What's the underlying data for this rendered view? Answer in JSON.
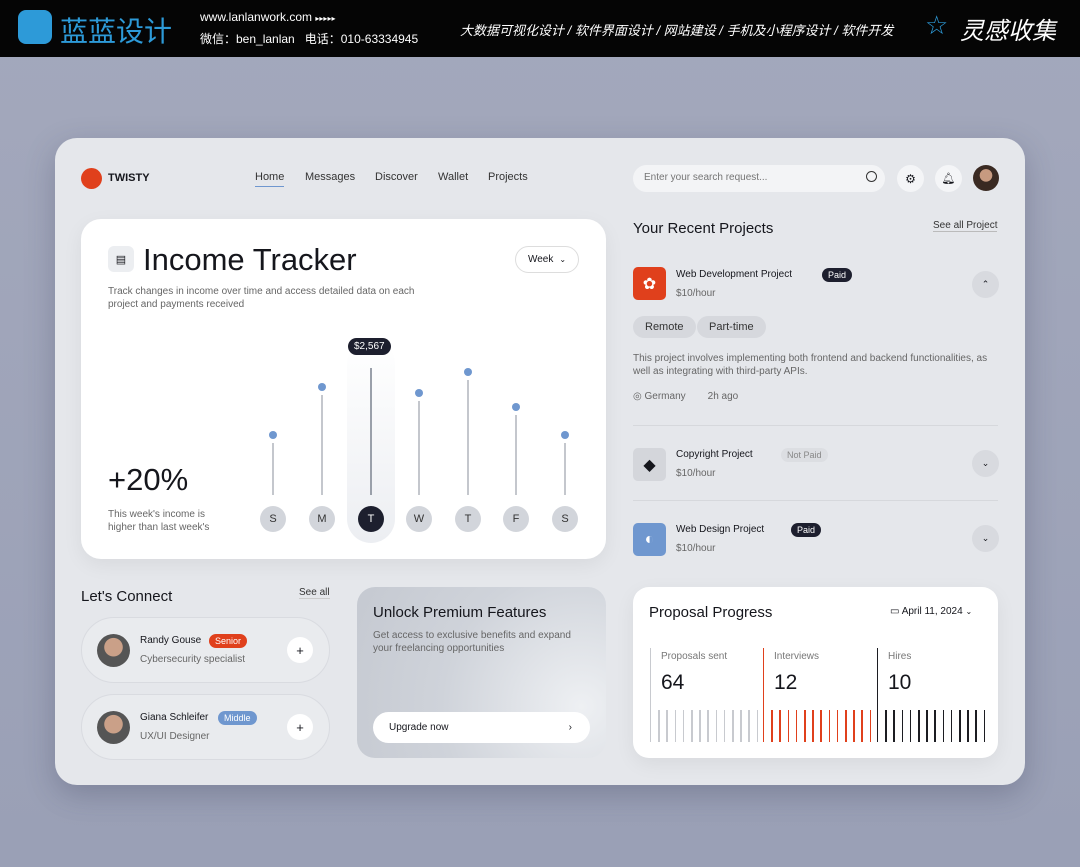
{
  "banner": {
    "brand": "蓝蓝设计",
    "url": "www.lanlanwork.com",
    "arrows": "▸▸▸▸▸",
    "wechat": "微信：ben_lanlan",
    "phone": "电话：010-63334945",
    "services": "大数据可视化设计 / 软件界面设计 / 网站建设 / 手机及小程序设计 / 软件开发",
    "right_brand": "灵感收集"
  },
  "app": {
    "name": "TWISTY",
    "accent": "#e0401c"
  },
  "nav": [
    {
      "label": "Home",
      "active": true
    },
    {
      "label": "Messages"
    },
    {
      "label": "Discover"
    },
    {
      "label": "Wallet"
    },
    {
      "label": "Projects"
    }
  ],
  "search": {
    "placeholder": "Enter your search request..."
  },
  "income": {
    "title": "Income Tracker",
    "subtitle": "Track changes in income over time and access detailed data on each project and payments received",
    "period": "Week",
    "percent": "+20%",
    "note": "This week's income is higher than last week's"
  },
  "chart_data": {
    "type": "bar",
    "categories": [
      "S",
      "M",
      "T",
      "W",
      "T",
      "F",
      "S"
    ],
    "values": [
      1140,
      2050,
      2567,
      1940,
      2340,
      1670,
      1140
    ],
    "highlight_index": 2,
    "highlight_label": "$2,567",
    "point_color": "#6f97cf"
  },
  "projects": {
    "title": "Your Recent Projects",
    "see_all": "See all Project",
    "items": [
      {
        "name": "Web Development Project",
        "status": "Paid",
        "rate": "$10/hour",
        "tags": [
          "Remote",
          "Part-time"
        ],
        "description": "This project involves implementing both frontend and backend functionalities, as well as integrating with third-party APIs.",
        "location": "Germany",
        "time": "2h ago",
        "icon_color": "#e0401c"
      },
      {
        "name": "Copyright Project",
        "status": "Not Paid",
        "rate": "$10/hour",
        "icon_color": "#d4d6db"
      },
      {
        "name": "Web Design Project",
        "status": "Paid",
        "rate": "$10/hour",
        "icon_color": "#6f97cf"
      }
    ]
  },
  "connect": {
    "title": "Let's Connect",
    "see_all": "See all",
    "people": [
      {
        "name": "Randy Gouse",
        "level": "Senior",
        "role": "Cybersecurity specialist",
        "level_color": "#e0401c"
      },
      {
        "name": "Giana Schleifer",
        "level": "Middle",
        "role": "UX/UI Designer",
        "level_color": "#6f97cf"
      }
    ]
  },
  "premium": {
    "title": "Unlock Premium Features",
    "text": "Get access to exclusive benefits and expand your freelancing opportunities",
    "button": "Upgrade now"
  },
  "proposal": {
    "title": "Proposal Progress",
    "date": "April 11, 2024",
    "stats": [
      {
        "label": "Proposals sent",
        "value": "64",
        "color": "#c8cacf"
      },
      {
        "label": "Interviews",
        "value": "12",
        "color": "#e0401c"
      },
      {
        "label": "Hires",
        "value": "10",
        "color": "#1c1d22"
      }
    ]
  }
}
